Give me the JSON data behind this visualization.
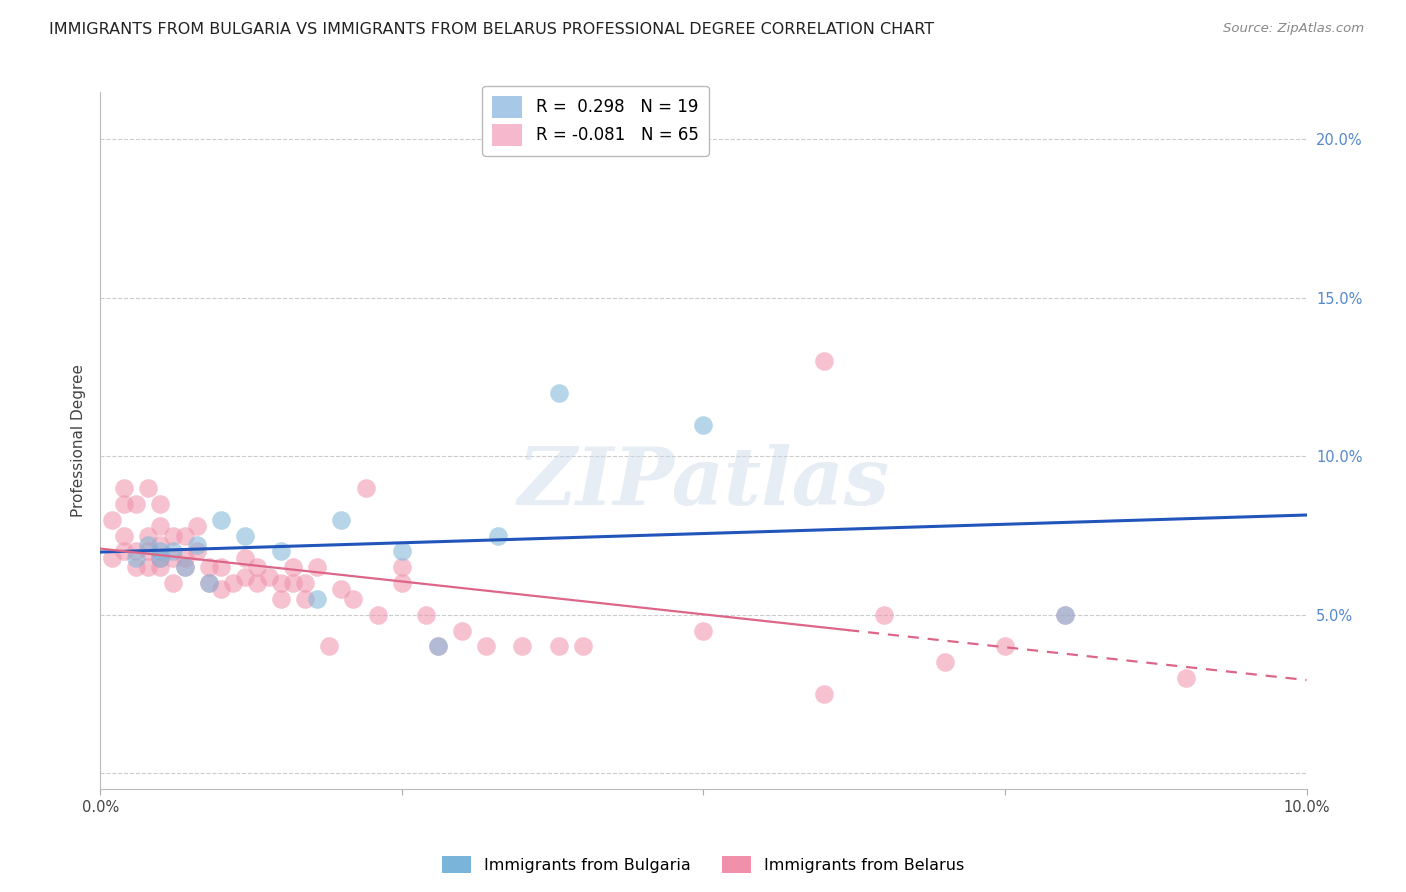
{
  "title": "IMMIGRANTS FROM BULGARIA VS IMMIGRANTS FROM BELARUS PROFESSIONAL DEGREE CORRELATION CHART",
  "source": "Source: ZipAtlas.com",
  "ylabel": "Professional Degree",
  "xlim": [
    0.0,
    0.1
  ],
  "ylim": [
    -0.005,
    0.215
  ],
  "yticks": [
    0.0,
    0.05,
    0.1,
    0.15,
    0.2
  ],
  "ytick_labels": [
    "",
    "5.0%",
    "10.0%",
    "15.0%",
    "20.0%"
  ],
  "xticks": [
    0.0,
    0.025,
    0.05,
    0.075,
    0.1
  ],
  "xtick_labels": [
    "0.0%",
    "",
    "",
    "",
    "10.0%"
  ],
  "legend_entries": [
    {
      "label": "R =  0.298   N = 19",
      "color": "#a8c8e8"
    },
    {
      "label": "R = -0.081   N = 65",
      "color": "#f5b8cc"
    }
  ],
  "bulgaria_color": "#7ab4d8",
  "belarus_color": "#f090aa",
  "bulgaria_line_color": "#2255bb",
  "belarus_line_color": "#dd6688",
  "watermark": "ZIPatlas",
  "bulgaria_scatter_x": [
    0.003,
    0.004,
    0.005,
    0.005,
    0.006,
    0.007,
    0.008,
    0.009,
    0.01,
    0.012,
    0.015,
    0.018,
    0.02,
    0.025,
    0.028,
    0.033,
    0.038,
    0.05,
    0.08
  ],
  "bulgaria_scatter_y": [
    0.068,
    0.072,
    0.068,
    0.07,
    0.07,
    0.065,
    0.072,
    0.06,
    0.08,
    0.075,
    0.07,
    0.055,
    0.08,
    0.07,
    0.04,
    0.075,
    0.12,
    0.11,
    0.05
  ],
  "belarus_scatter_x": [
    0.001,
    0.001,
    0.002,
    0.002,
    0.002,
    0.002,
    0.003,
    0.003,
    0.003,
    0.004,
    0.004,
    0.004,
    0.004,
    0.005,
    0.005,
    0.005,
    0.005,
    0.005,
    0.006,
    0.006,
    0.006,
    0.007,
    0.007,
    0.007,
    0.008,
    0.008,
    0.009,
    0.009,
    0.01,
    0.01,
    0.011,
    0.012,
    0.012,
    0.013,
    0.013,
    0.014,
    0.015,
    0.015,
    0.016,
    0.016,
    0.017,
    0.017,
    0.018,
    0.019,
    0.02,
    0.021,
    0.022,
    0.023,
    0.025,
    0.025,
    0.027,
    0.028,
    0.03,
    0.032,
    0.035,
    0.038,
    0.04,
    0.05,
    0.06,
    0.065,
    0.07,
    0.075,
    0.08,
    0.09,
    0.06
  ],
  "belarus_scatter_y": [
    0.068,
    0.08,
    0.07,
    0.075,
    0.085,
    0.09,
    0.065,
    0.07,
    0.085,
    0.065,
    0.07,
    0.075,
    0.09,
    0.065,
    0.068,
    0.072,
    0.078,
    0.085,
    0.06,
    0.068,
    0.075,
    0.065,
    0.068,
    0.075,
    0.07,
    0.078,
    0.06,
    0.065,
    0.058,
    0.065,
    0.06,
    0.062,
    0.068,
    0.06,
    0.065,
    0.062,
    0.055,
    0.06,
    0.06,
    0.065,
    0.055,
    0.06,
    0.065,
    0.04,
    0.058,
    0.055,
    0.09,
    0.05,
    0.06,
    0.065,
    0.05,
    0.04,
    0.045,
    0.04,
    0.04,
    0.04,
    0.04,
    0.045,
    0.025,
    0.05,
    0.035,
    0.04,
    0.05,
    0.03,
    0.13
  ],
  "bg_color": "#ffffff",
  "grid_color": "#cccccc",
  "title_fontsize": 11.5,
  "axis_label_fontsize": 11,
  "tick_fontsize": 10.5,
  "legend_fontsize": 12,
  "bulgaria_line_x": [
    0.0,
    0.1
  ],
  "belarus_line_solid_end": 0.062,
  "belarus_line_x": [
    0.0,
    0.1
  ]
}
